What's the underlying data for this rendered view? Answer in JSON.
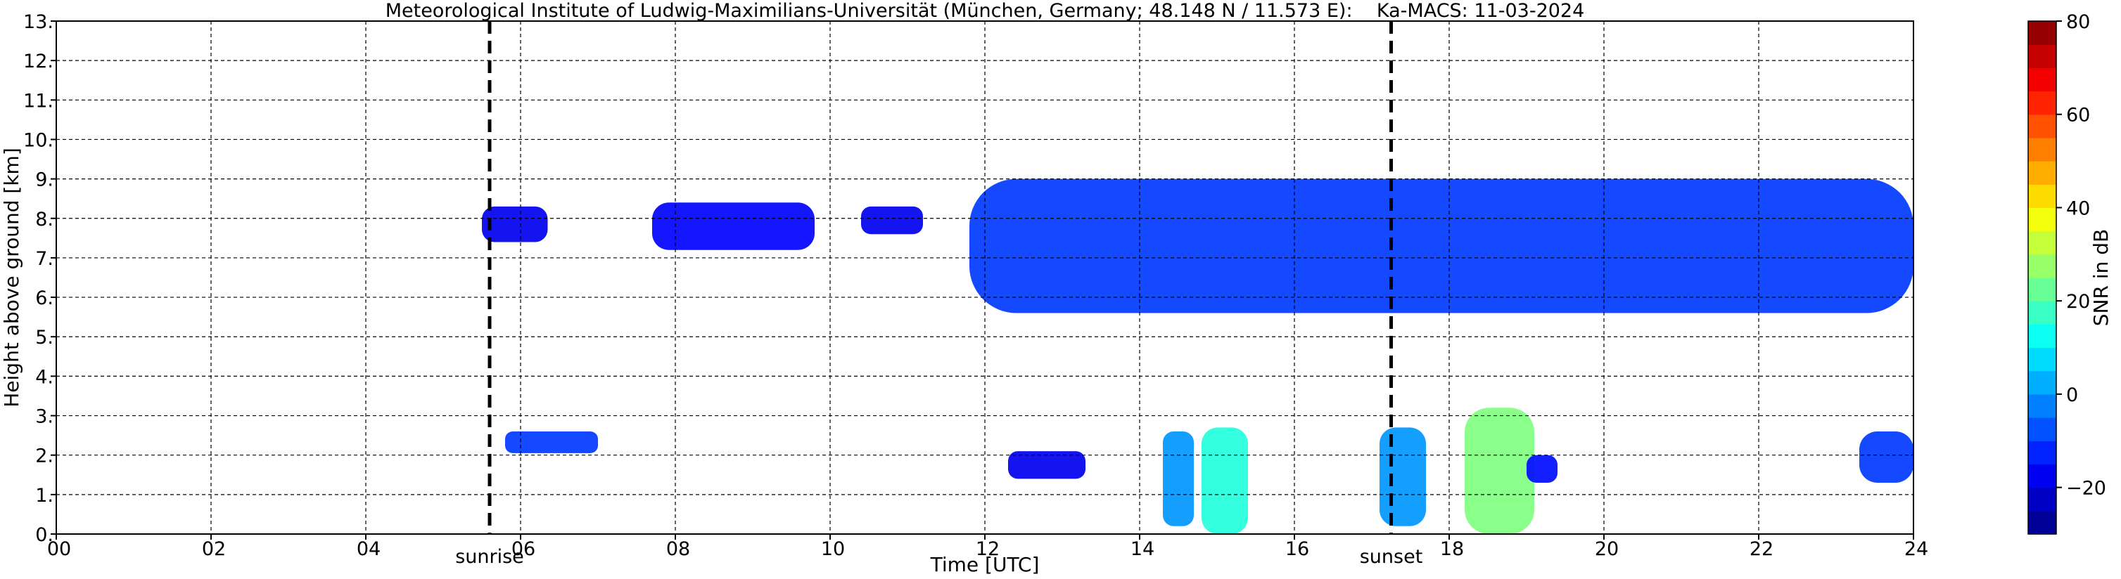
{
  "chart_data": {
    "type": "heatmap",
    "title": "Meteorological Institute of Ludwig-Maximilians-Universität (München, Germany; 48.148 N / 11.573 E):    Ka-MACS: 11-03-2024",
    "xlabel": "Time [UTC]",
    "ylabel": "Height above ground [km]",
    "xlim": [
      0,
      24
    ],
    "ylim": [
      0,
      13
    ],
    "x_ticks": [
      0,
      2,
      4,
      6,
      8,
      10,
      12,
      14,
      16,
      18,
      20,
      22,
      24
    ],
    "x_tick_labels": [
      "00",
      "02",
      "04",
      "06",
      "08",
      "10",
      "12",
      "14",
      "16",
      "18",
      "20",
      "22",
      "24"
    ],
    "y_ticks": [
      0,
      1,
      2,
      3,
      4,
      5,
      6,
      7,
      8,
      9,
      10,
      11,
      12,
      13
    ],
    "y_tick_labels": [
      "0.",
      "1.",
      "2.",
      "3.",
      "4.",
      "5.",
      "6.",
      "7.",
      "8.",
      "9.",
      "10.",
      "11.",
      "12.",
      "13."
    ],
    "grid": true,
    "events": [
      {
        "label": "sunrise",
        "time": 5.6
      },
      {
        "label": "sunset",
        "time": 17.25
      }
    ],
    "colorbar": {
      "label": "SNR in dB",
      "range": [
        -30,
        80
      ],
      "ticks": [
        -20,
        0,
        20,
        40,
        60,
        80
      ],
      "tick_labels": [
        "−20",
        "0",
        "20",
        "40",
        "60",
        "80"
      ],
      "colormap": "jet"
    },
    "echo_regions": [
      {
        "kind": "cirrus",
        "t_start": 5.5,
        "t_end": 6.35,
        "base_km": 7.4,
        "top_km": 8.3,
        "snr_db": -18
      },
      {
        "kind": "cirrus",
        "t_start": 7.7,
        "t_end": 9.8,
        "base_km": 7.2,
        "top_km": 8.4,
        "snr_db": -16
      },
      {
        "kind": "cirrus",
        "t_start": 10.4,
        "t_end": 11.2,
        "base_km": 7.6,
        "top_km": 8.3,
        "snr_db": -18
      },
      {
        "kind": "cirrus",
        "t_start": 11.8,
        "t_end": 24,
        "base_km": 5.6,
        "top_km": 9.0,
        "snr_db": -10
      },
      {
        "kind": "low cloud",
        "t_start": 5.8,
        "t_end": 7.0,
        "base_km": 2.05,
        "top_km": 2.6,
        "snr_db": -10
      },
      {
        "kind": "low cloud",
        "t_start": 12.3,
        "t_end": 13.3,
        "base_km": 1.4,
        "top_km": 2.1,
        "snr_db": -18
      },
      {
        "kind": "precipitation",
        "t_start": 14.3,
        "t_end": 14.7,
        "base_km": 0.2,
        "top_km": 2.6,
        "snr_db": 0
      },
      {
        "kind": "precipitation",
        "t_start": 14.8,
        "t_end": 15.4,
        "base_km": 0.0,
        "top_km": 2.7,
        "snr_db": 15
      },
      {
        "kind": "precipitation",
        "t_start": 17.1,
        "t_end": 17.7,
        "base_km": 0.2,
        "top_km": 2.7,
        "snr_db": 0
      },
      {
        "kind": "precipitation",
        "t_start": 18.2,
        "t_end": 19.1,
        "base_km": 0.0,
        "top_km": 3.2,
        "snr_db": 25
      },
      {
        "kind": "low cloud",
        "t_start": 19.0,
        "t_end": 19.4,
        "base_km": 1.3,
        "top_km": 2.0,
        "snr_db": -15
      },
      {
        "kind": "low cloud",
        "t_start": 23.3,
        "t_end": 24,
        "base_km": 1.3,
        "top_km": 2.6,
        "snr_db": -10
      }
    ]
  }
}
